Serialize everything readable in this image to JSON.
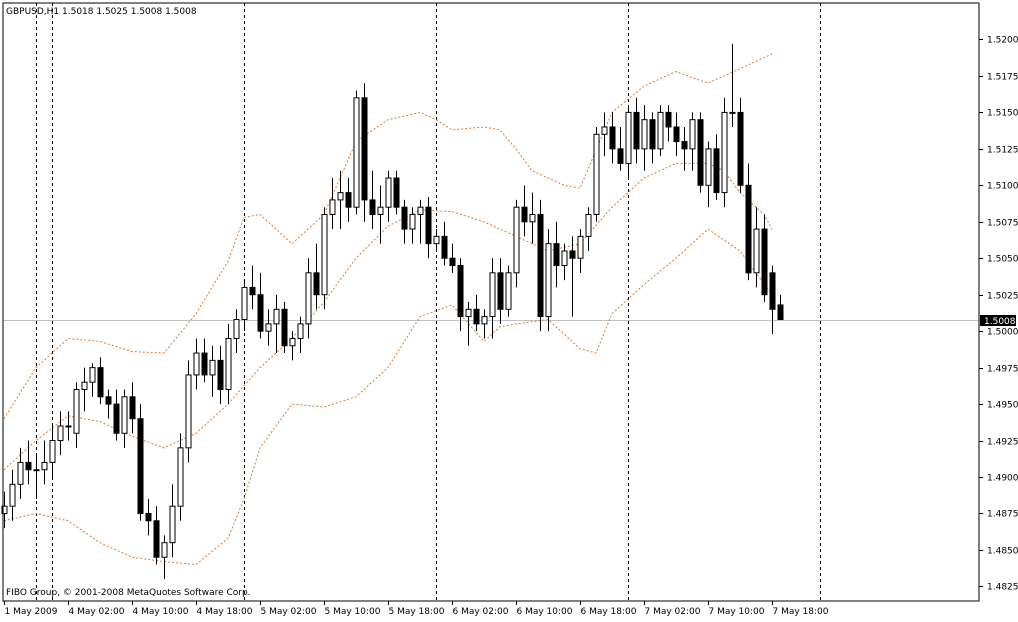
{
  "symbol_header": "GBPUSD,H1  1.5018 1.5025 1.5008 1.5008",
  "copyright": "FIBO Group, © 2001-2008 MetaQuotes Software Corp.",
  "current_price_label": "1.5008",
  "colors": {
    "background": "#ffffff",
    "frame": "#000000",
    "bull_fill": "#ffffff",
    "bear_fill": "#000000",
    "bands": "#e07a2a",
    "price_line": "#c0c0c0",
    "price_tag_bg": "#000000",
    "price_tag_text": "#ffffff"
  },
  "chart_data": {
    "type": "candlestick",
    "title": "GBPUSD,H1",
    "ohlc_readout": {
      "open": 1.5018,
      "high": 1.5025,
      "low": 1.5008,
      "close": 1.5008
    },
    "ylim": [
      1.4815,
      1.5225
    ],
    "y_ticks": [
      "1.4825",
      "1.4850",
      "1.4875",
      "1.4900",
      "1.4925",
      "1.4950",
      "1.4975",
      "1.5000",
      "1.5025",
      "1.5050",
      "1.5075",
      "1.5100",
      "1.5125",
      "1.5150",
      "1.5175",
      "1.5200"
    ],
    "x_ticks": [
      "1 May 2009",
      "4 May 02:00",
      "4 May 10:00",
      "4 May 18:00",
      "5 May 02:00",
      "5 May 10:00",
      "5 May 18:00",
      "6 May 02:00",
      "6 May 10:00",
      "6 May 18:00",
      "7 May 02:00",
      "7 May 10:00",
      "7 May 18:00"
    ],
    "x_tick_slots": [
      0,
      8,
      16,
      24,
      32,
      40,
      48,
      56,
      64,
      72,
      80,
      88,
      96
    ],
    "separator_slots": [
      4,
      6,
      30,
      54,
      78,
      102
    ],
    "candles": [
      [
        1.4875,
        1.489,
        1.4865,
        1.488
      ],
      [
        1.488,
        1.4905,
        1.487,
        1.4895
      ],
      [
        1.4895,
        1.492,
        1.4885,
        1.491
      ],
      [
        1.491,
        1.4925,
        1.4895,
        1.4905
      ],
      [
        1.4905,
        1.4915,
        1.4885,
        1.4905
      ],
      [
        1.4905,
        1.4925,
        1.4895,
        1.491
      ],
      [
        1.491,
        1.4935,
        1.49,
        1.4925
      ],
      [
        1.4925,
        1.4945,
        1.4915,
        1.4935
      ],
      [
        1.4935,
        1.4945,
        1.4925,
        1.4935
      ],
      [
        1.493,
        1.4965,
        1.492,
        1.496
      ],
      [
        1.496,
        1.4975,
        1.4945,
        1.4965
      ],
      [
        1.4965,
        1.4978,
        1.4955,
        1.4975
      ],
      [
        1.4975,
        1.4982,
        1.495,
        1.4955
      ],
      [
        1.4955,
        1.496,
        1.494,
        1.495
      ],
      [
        1.495,
        1.496,
        1.4925,
        1.493
      ],
      [
        1.493,
        1.496,
        1.492,
        1.4955
      ],
      [
        1.4955,
        1.4965,
        1.493,
        1.494
      ],
      [
        1.494,
        1.495,
        1.487,
        1.4875
      ],
      [
        1.4875,
        1.4885,
        1.486,
        1.487
      ],
      [
        1.487,
        1.488,
        1.484,
        1.4845
      ],
      [
        1.4845,
        1.486,
        1.483,
        1.4855
      ],
      [
        1.4855,
        1.4895,
        1.4845,
        1.488
      ],
      [
        1.488,
        1.493,
        1.487,
        1.492
      ],
      [
        1.492,
        1.498,
        1.491,
        1.497
      ],
      [
        1.497,
        1.4995,
        1.496,
        1.4985
      ],
      [
        1.4985,
        1.4995,
        1.4965,
        1.497
      ],
      [
        1.497,
        1.499,
        1.4955,
        1.498
      ],
      [
        1.498,
        1.499,
        1.495,
        1.496
      ],
      [
        1.496,
        1.5005,
        1.495,
        1.4995
      ],
      [
        1.4995,
        1.5015,
        1.4985,
        1.5008
      ],
      [
        1.5008,
        1.5035,
        1.5,
        1.503
      ],
      [
        1.503,
        1.5045,
        1.5015,
        1.5025
      ],
      [
        1.5025,
        1.504,
        1.4995,
        1.5
      ],
      [
        1.5,
        1.5015,
        1.499,
        1.5005
      ],
      [
        1.5005,
        1.5025,
        1.4985,
        1.5015
      ],
      [
        1.5015,
        1.502,
        1.4985,
        1.499
      ],
      [
        1.499,
        1.5,
        1.498,
        1.4995
      ],
      [
        1.4995,
        1.501,
        1.4985,
        1.5005
      ],
      [
        1.5005,
        1.505,
        1.4995,
        1.504
      ],
      [
        1.504,
        1.506,
        1.5015,
        1.5025
      ],
      [
        1.5025,
        1.5085,
        1.5015,
        1.508
      ],
      [
        1.508,
        1.5105,
        1.507,
        1.509
      ],
      [
        1.509,
        1.511,
        1.507,
        1.5095
      ],
      [
        1.5095,
        1.5105,
        1.5075,
        1.5085
      ],
      [
        1.5085,
        1.5165,
        1.508,
        1.516
      ],
      [
        1.516,
        1.517,
        1.5075,
        1.509
      ],
      [
        1.509,
        1.511,
        1.507,
        1.508
      ],
      [
        1.508,
        1.51,
        1.506,
        1.5085
      ],
      [
        1.5085,
        1.511,
        1.5075,
        1.5105
      ],
      [
        1.5105,
        1.511,
        1.508,
        1.5085
      ],
      [
        1.5085,
        1.509,
        1.506,
        1.507
      ],
      [
        1.507,
        1.5085,
        1.506,
        1.508
      ],
      [
        1.508,
        1.509,
        1.506,
        1.5085
      ],
      [
        1.5085,
        1.5092,
        1.505,
        1.506
      ],
      [
        1.506,
        1.507,
        1.5055,
        1.5065
      ],
      [
        1.5065,
        1.5075,
        1.5045,
        1.505
      ],
      [
        1.505,
        1.506,
        1.504,
        1.5045
      ],
      [
        1.5045,
        1.505,
        1.5,
        1.501
      ],
      [
        1.501,
        1.502,
        1.499,
        1.5015
      ],
      [
        1.5015,
        1.5025,
        1.5,
        1.5005
      ],
      [
        1.5005,
        1.5015,
        1.4995,
        1.501
      ],
      [
        1.501,
        1.505,
        1.4995,
        1.504
      ],
      [
        1.504,
        1.505,
        1.5005,
        1.5015
      ],
      [
        1.5015,
        1.5045,
        1.501,
        1.504
      ],
      [
        1.504,
        1.509,
        1.503,
        1.5085
      ],
      [
        1.5085,
        1.51,
        1.5065,
        1.5075
      ],
      [
        1.5075,
        1.5095,
        1.506,
        1.508
      ],
      [
        1.508,
        1.509,
        1.5,
        1.501
      ],
      [
        1.501,
        1.507,
        1.5,
        1.506
      ],
      [
        1.506,
        1.5075,
        1.503,
        1.5045
      ],
      [
        1.5045,
        1.506,
        1.5035,
        1.5055
      ],
      [
        1.5055,
        1.5065,
        1.501,
        1.505
      ],
      [
        1.505,
        1.507,
        1.504,
        1.5065
      ],
      [
        1.5065,
        1.5085,
        1.5055,
        1.508
      ],
      [
        1.508,
        1.514,
        1.5075,
        1.5135
      ],
      [
        1.5135,
        1.515,
        1.512,
        1.514
      ],
      [
        1.514,
        1.515,
        1.5115,
        1.5125
      ],
      [
        1.5125,
        1.514,
        1.511,
        1.5115
      ],
      [
        1.5115,
        1.5155,
        1.5105,
        1.515
      ],
      [
        1.515,
        1.516,
        1.5115,
        1.5125
      ],
      [
        1.5125,
        1.5155,
        1.511,
        1.5145
      ],
      [
        1.5145,
        1.515,
        1.5115,
        1.5125
      ],
      [
        1.5125,
        1.5155,
        1.512,
        1.515
      ],
      [
        1.515,
        1.5155,
        1.513,
        1.514
      ],
      [
        1.514,
        1.515,
        1.512,
        1.513
      ],
      [
        1.513,
        1.514,
        1.511,
        1.5125
      ],
      [
        1.5125,
        1.515,
        1.511,
        1.5145
      ],
      [
        1.5145,
        1.515,
        1.5095,
        1.51
      ],
      [
        1.51,
        1.513,
        1.5085,
        1.5125
      ],
      [
        1.5125,
        1.5135,
        1.509,
        1.5095
      ],
      [
        1.5095,
        1.516,
        1.5085,
        1.515
      ],
      [
        1.515,
        1.5197,
        1.514,
        1.515
      ],
      [
        1.515,
        1.516,
        1.5095,
        1.51
      ],
      [
        1.51,
        1.5115,
        1.5035,
        1.504
      ],
      [
        1.504,
        1.5085,
        1.503,
        1.507
      ],
      [
        1.507,
        1.508,
        1.502,
        1.5025
      ],
      [
        1.504,
        1.5045,
        1.4998,
        1.5015
      ],
      [
        1.5018,
        1.5025,
        1.5008,
        1.5008
      ]
    ],
    "bollinger": {
      "upper": [
        [
          0,
          1.494
        ],
        [
          4,
          1.4975
        ],
        [
          8,
          1.4995
        ],
        [
          12,
          1.4993
        ],
        [
          16,
          1.4986
        ],
        [
          20,
          1.4985
        ],
        [
          24,
          1.5012
        ],
        [
          28,
          1.5048
        ],
        [
          30,
          1.5078
        ],
        [
          32,
          1.508
        ],
        [
          36,
          1.506
        ],
        [
          40,
          1.508
        ],
        [
          44,
          1.513
        ],
        [
          48,
          1.5145
        ],
        [
          52,
          1.515
        ],
        [
          54,
          1.5145
        ],
        [
          56,
          1.5138
        ],
        [
          60,
          1.514
        ],
        [
          62,
          1.5138
        ],
        [
          64,
          1.5125
        ],
        [
          66,
          1.511
        ],
        [
          70,
          1.51
        ],
        [
          72,
          1.5098
        ],
        [
          76,
          1.515
        ],
        [
          80,
          1.5168
        ],
        [
          84,
          1.5178
        ],
        [
          88,
          1.517
        ],
        [
          92,
          1.518
        ],
        [
          96,
          1.519
        ]
      ],
      "middle": [
        [
          0,
          1.4905
        ],
        [
          4,
          1.4925
        ],
        [
          8,
          1.4942
        ],
        [
          12,
          1.4938
        ],
        [
          16,
          1.4928
        ],
        [
          20,
          1.492
        ],
        [
          24,
          1.493
        ],
        [
          28,
          1.495
        ],
        [
          32,
          1.4975
        ],
        [
          36,
          1.4995
        ],
        [
          40,
          1.502
        ],
        [
          44,
          1.505
        ],
        [
          48,
          1.5072
        ],
        [
          52,
          1.5083
        ],
        [
          56,
          1.5082
        ],
        [
          60,
          1.5075
        ],
        [
          64,
          1.5065
        ],
        [
          68,
          1.5055
        ],
        [
          72,
          1.506
        ],
        [
          76,
          1.5085
        ],
        [
          80,
          1.5105
        ],
        [
          84,
          1.5115
        ],
        [
          88,
          1.5115
        ],
        [
          90,
          1.511
        ],
        [
          92,
          1.5095
        ],
        [
          95,
          1.508
        ],
        [
          96,
          1.507
        ]
      ],
      "lower": [
        [
          0,
          1.487
        ],
        [
          4,
          1.4875
        ],
        [
          8,
          1.487
        ],
        [
          12,
          1.4855
        ],
        [
          16,
          1.4845
        ],
        [
          20,
          1.4842
        ],
        [
          24,
          1.484
        ],
        [
          28,
          1.4858
        ],
        [
          30,
          1.4885
        ],
        [
          32,
          1.492
        ],
        [
          36,
          1.495
        ],
        [
          40,
          1.4948
        ],
        [
          44,
          1.4955
        ],
        [
          48,
          1.4975
        ],
        [
          52,
          1.501
        ],
        [
          56,
          1.5018
        ],
        [
          60,
          1.4993
        ],
        [
          62,
          1.5003
        ],
        [
          64,
          1.5005
        ],
        [
          68,
          1.5008
        ],
        [
          72,
          1.4988
        ],
        [
          74,
          1.4985
        ],
        [
          76,
          1.5012
        ],
        [
          80,
          1.5032
        ],
        [
          84,
          1.505
        ],
        [
          88,
          1.507
        ],
        [
          92,
          1.5055
        ],
        [
          96,
          1.5025
        ]
      ]
    }
  }
}
